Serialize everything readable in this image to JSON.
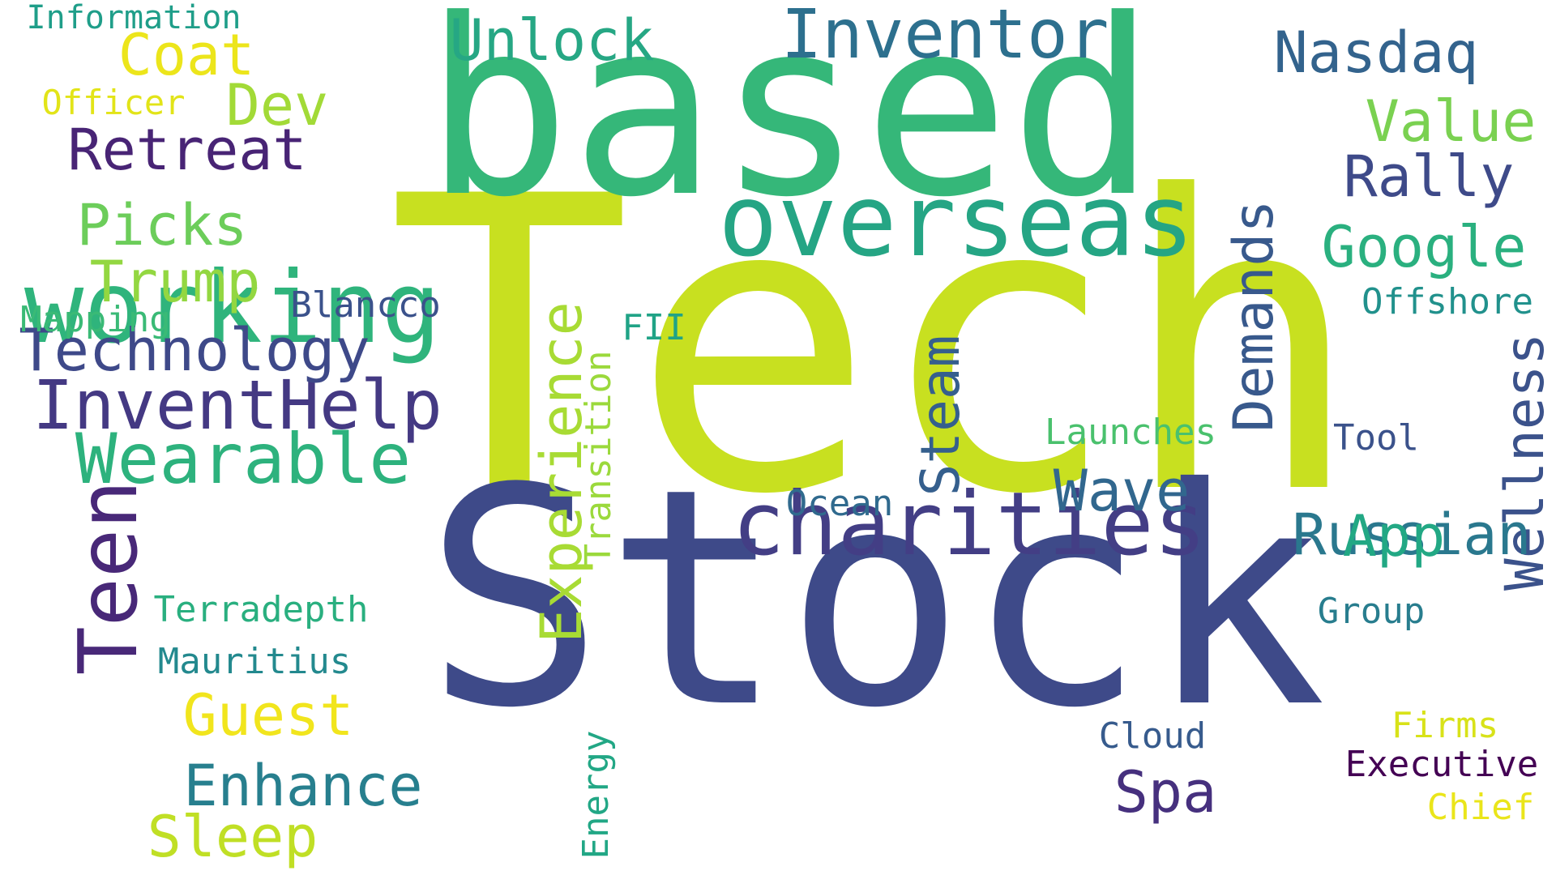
{
  "words": [
    {
      "text": "Tech",
      "color": "#c8e020"
    },
    {
      "text": "Stock",
      "color": "#3e4a89"
    },
    {
      "text": "based",
      "color": "#35b779"
    },
    {
      "text": "overseas",
      "color": "#25a584"
    },
    {
      "text": "charities",
      "color": "#433e85"
    },
    {
      "text": "working",
      "color": "#2fb47c"
    },
    {
      "text": "Inventor",
      "color": "#2d708e"
    },
    {
      "text": "InventHelp",
      "color": "#443983"
    },
    {
      "text": "Technology",
      "color": "#3e4989"
    },
    {
      "text": "Wearable",
      "color": "#2db27d"
    },
    {
      "text": "Teen",
      "color": "#482878"
    },
    {
      "text": "Experience",
      "color": "#a8db34"
    },
    {
      "text": "Demands",
      "color": "#38598c"
    },
    {
      "text": "Wellness",
      "color": "#3b528b"
    },
    {
      "text": "Russian",
      "color": "#2a788e"
    },
    {
      "text": "Steam",
      "color": "#355f8d"
    },
    {
      "text": "Unlock",
      "color": "#26a784"
    },
    {
      "text": "Nasdaq",
      "color": "#33638d"
    },
    {
      "text": "Retreat",
      "color": "#482475"
    },
    {
      "text": "Enhance",
      "color": "#277f8e"
    },
    {
      "text": "Value",
      "color": "#7ad151"
    },
    {
      "text": "Rally",
      "color": "#3e4a89"
    },
    {
      "text": "Google",
      "color": "#2ab07f"
    },
    {
      "text": "Guest",
      "color": "#f1e51d"
    },
    {
      "text": "Coat",
      "color": "#ece51b"
    },
    {
      "text": "Picks",
      "color": "#6ccd5a"
    },
    {
      "text": "Trump",
      "color": "#93d741"
    },
    {
      "text": "Dev",
      "color": "#a2da37"
    },
    {
      "text": "Sleep",
      "color": "#c0df25"
    },
    {
      "text": "Wave",
      "color": "#31678e"
    },
    {
      "text": "App",
      "color": "#22a884"
    },
    {
      "text": "Spa",
      "color": "#46307e"
    },
    {
      "text": "Offshore",
      "color": "#21918c"
    },
    {
      "text": "Blancco",
      "color": "#3b528b"
    },
    {
      "text": "Transition",
      "color": "#9bd93c"
    },
    {
      "text": "Launches",
      "color": "#4ac16d"
    },
    {
      "text": "Tool",
      "color": "#3b528b"
    },
    {
      "text": "Ocean",
      "color": "#306a8e"
    },
    {
      "text": "FII",
      "color": "#20a386"
    },
    {
      "text": "Mapping",
      "color": "#3aba76"
    },
    {
      "text": "Terradepth",
      "color": "#29af7f"
    },
    {
      "text": "Mauritius",
      "color": "#23898e"
    },
    {
      "text": "Group",
      "color": "#287d8e"
    },
    {
      "text": "Cloud",
      "color": "#375b8d"
    },
    {
      "text": "Executive",
      "color": "#440154"
    },
    {
      "text": "Firms",
      "color": "#d8e219"
    },
    {
      "text": "Chief",
      "color": "#eae51a"
    },
    {
      "text": "Energy",
      "color": "#22a785"
    },
    {
      "text": "Officer",
      "color": "#e2e418"
    },
    {
      "text": "Information",
      "color": "#1f9e89"
    }
  ]
}
